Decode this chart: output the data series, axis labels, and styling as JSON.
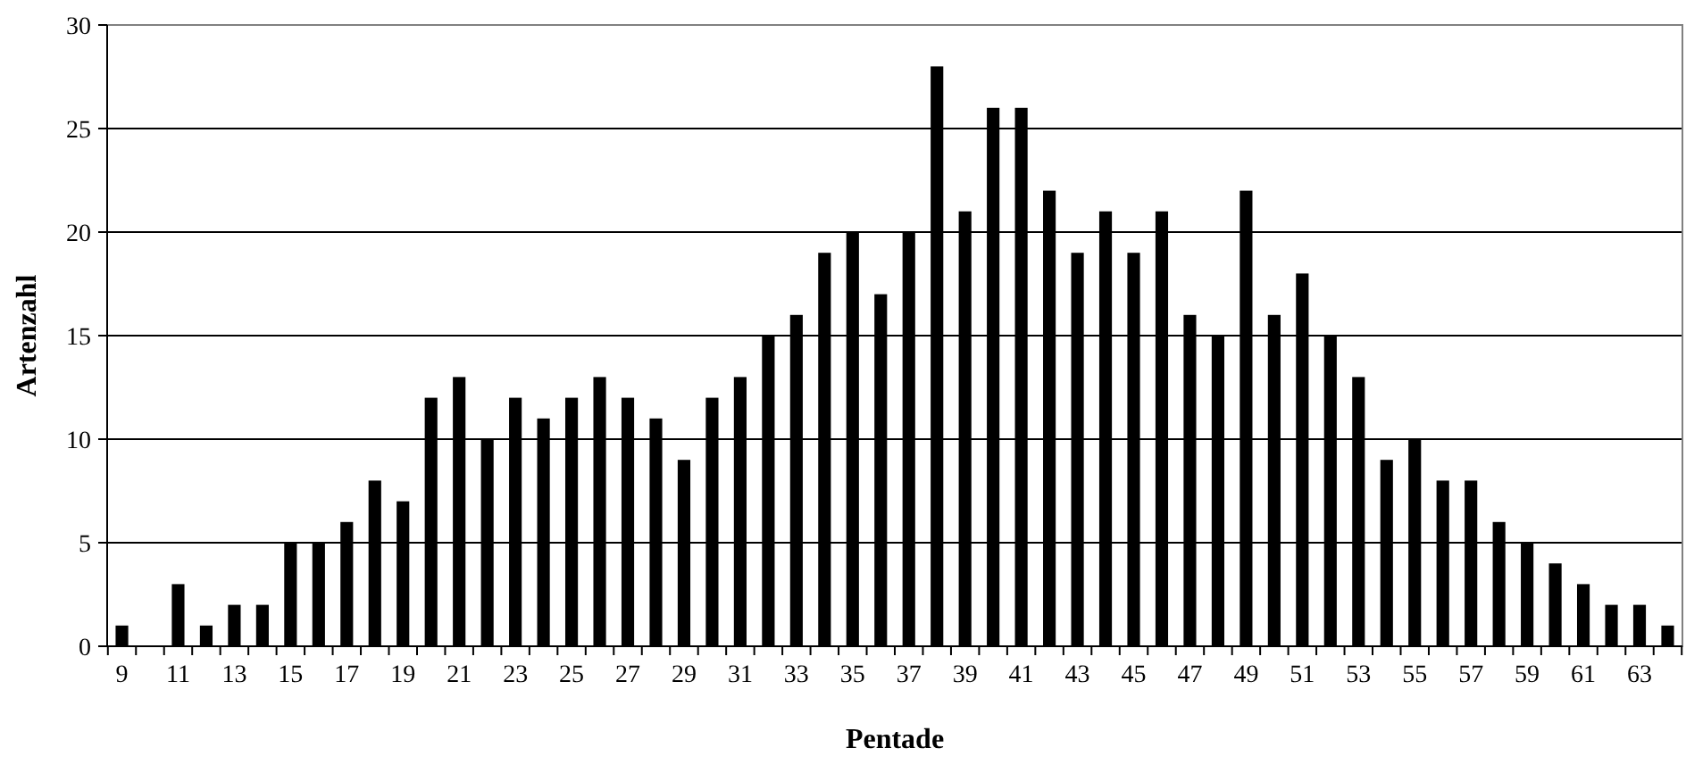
{
  "chart_data": {
    "type": "bar",
    "xlabel": "Pentade",
    "ylabel": "Artenzahl",
    "categories": [
      "9",
      null,
      "11",
      null,
      "13",
      null,
      "15",
      null,
      "17",
      null,
      "19",
      null,
      "21",
      null,
      "23",
      null,
      "25",
      null,
      "27",
      null,
      "29",
      null,
      "31",
      null,
      "33",
      null,
      "35",
      null,
      "37",
      null,
      "39",
      null,
      "41",
      null,
      "43",
      null,
      "45",
      null,
      "47",
      null,
      "49",
      null,
      "51",
      null,
      "53",
      null,
      "55",
      null,
      "57",
      null,
      "59",
      null,
      "61",
      null,
      "63",
      null
    ],
    "values": [
      1,
      0,
      3,
      1,
      2,
      2,
      5,
      5,
      6,
      8,
      7,
      12,
      13,
      10,
      12,
      11,
      12,
      13,
      12,
      11,
      9,
      12,
      13,
      15,
      16,
      19,
      20,
      17,
      20,
      28,
      21,
      26,
      26,
      22,
      19,
      21,
      19,
      21,
      16,
      15,
      22,
      16,
      18,
      15,
      13,
      9,
      10,
      8,
      8,
      6,
      5,
      4,
      3,
      2,
      2,
      1
    ],
    "color": "#000000",
    "ylim": [
      0,
      30
    ],
    "yticks": [
      0,
      5,
      10,
      15,
      20,
      25,
      30
    ],
    "grid": "y"
  }
}
